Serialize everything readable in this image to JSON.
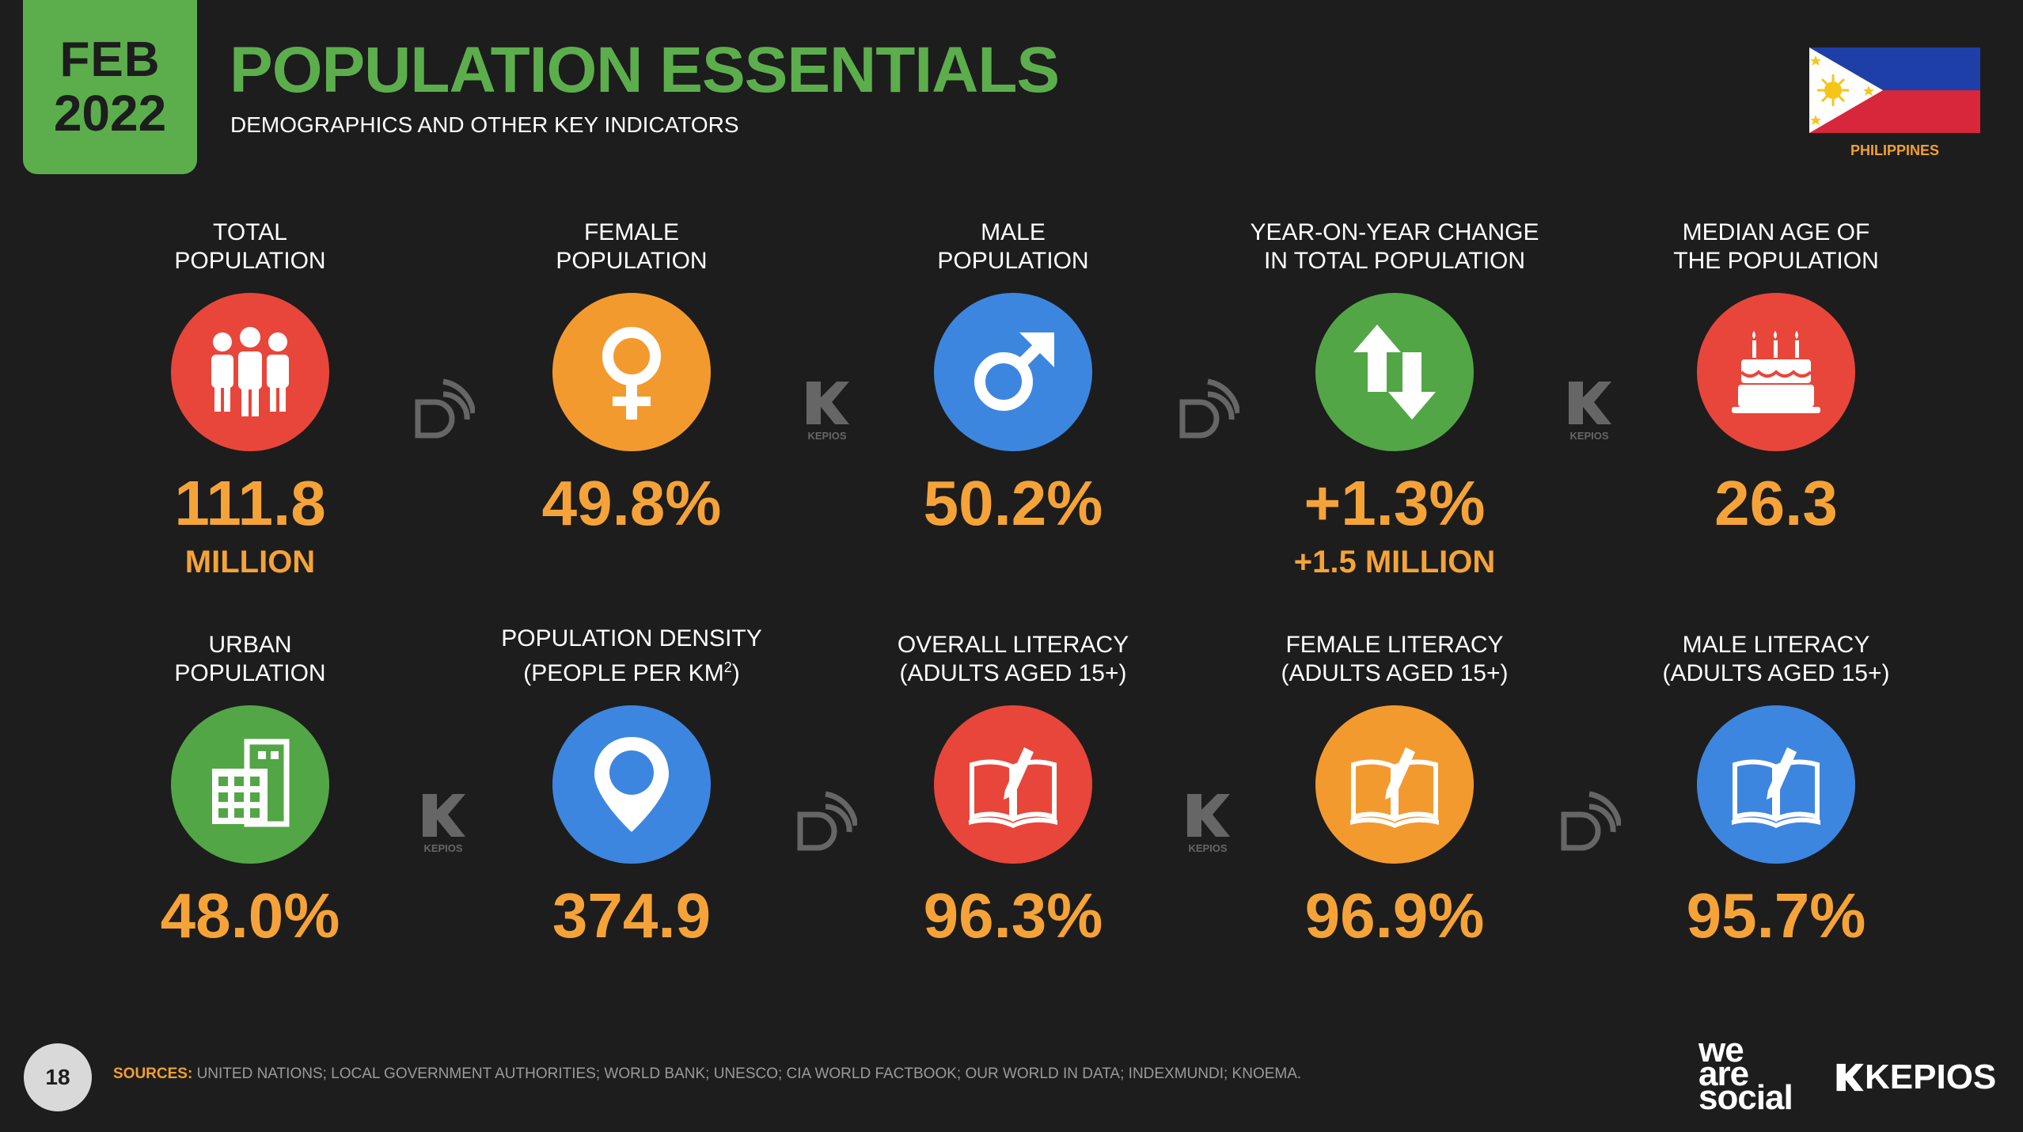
{
  "header": {
    "date_month": "FEB",
    "date_year": "2022",
    "title": "POPULATION ESSENTIALS",
    "subtitle": "DEMOGRAPHICS AND OTHER KEY INDICATORS",
    "country": "PHILIPPINES"
  },
  "stats": [
    {
      "label1": "TOTAL",
      "label2": "POPULATION",
      "value": "111.8",
      "sub": "MILLION",
      "icon": "people-icon",
      "color": "#e8463a"
    },
    {
      "label1": "FEMALE",
      "label2": "POPULATION",
      "value": "49.8%",
      "sub": "",
      "icon": "female-icon",
      "color": "#f39a2f"
    },
    {
      "label1": "MALE",
      "label2": "POPULATION",
      "value": "50.2%",
      "sub": "",
      "icon": "male-icon",
      "color": "#3d86e0"
    },
    {
      "label1": "YEAR-ON-YEAR CHANGE",
      "label2": "IN TOTAL POPULATION",
      "value": "+1.3%",
      "sub": "+1.5 MILLION",
      "icon": "up-down-arrows-icon",
      "color": "#52a646"
    },
    {
      "label1": "MEDIAN AGE OF",
      "label2": "THE POPULATION",
      "value": "26.3",
      "sub": "",
      "icon": "birthday-cake-icon",
      "color": "#e8463a"
    },
    {
      "label1": "URBAN",
      "label2": "POPULATION",
      "value": "48.0%",
      "sub": "",
      "icon": "building-icon",
      "color": "#52a646"
    },
    {
      "label1": "POPULATION DENSITY",
      "label2": "(PEOPLE PER KM",
      "label2_sup": "2",
      "label2_end": ")",
      "value": "374.9",
      "sub": "",
      "icon": "map-pin-icon",
      "color": "#3d86e0"
    },
    {
      "label1": "OVERALL LITERACY",
      "label2": "(ADULTS AGED 15+)",
      "value": "96.3%",
      "sub": "",
      "icon": "book-icon",
      "color": "#e8463a"
    },
    {
      "label1": "FEMALE LITERACY",
      "label2": "(ADULTS AGED 15+)",
      "value": "96.9%",
      "sub": "",
      "icon": "book-icon",
      "color": "#f39a2f"
    },
    {
      "label1": "MALE LITERACY",
      "label2": "(ADULTS AGED 15+)",
      "value": "95.7%",
      "sub": "",
      "icon": "book-icon",
      "color": "#3d86e0"
    }
  ],
  "footer": {
    "page_number": "18",
    "sources_label": "SOURCES:",
    "sources_text": "UNITED NATIONS; LOCAL GOVERNMENT AUTHORITIES; WORLD BANK; UNESCO; CIA WORLD FACTBOOK; OUR WORLD IN DATA; INDEXMUNDI; KNOEMA.",
    "brand1_line1": "we",
    "brand1_line2": "are",
    "brand1_line3": "social",
    "brand2": "KEPIOS",
    "watermark_text": "KEPIOS"
  }
}
